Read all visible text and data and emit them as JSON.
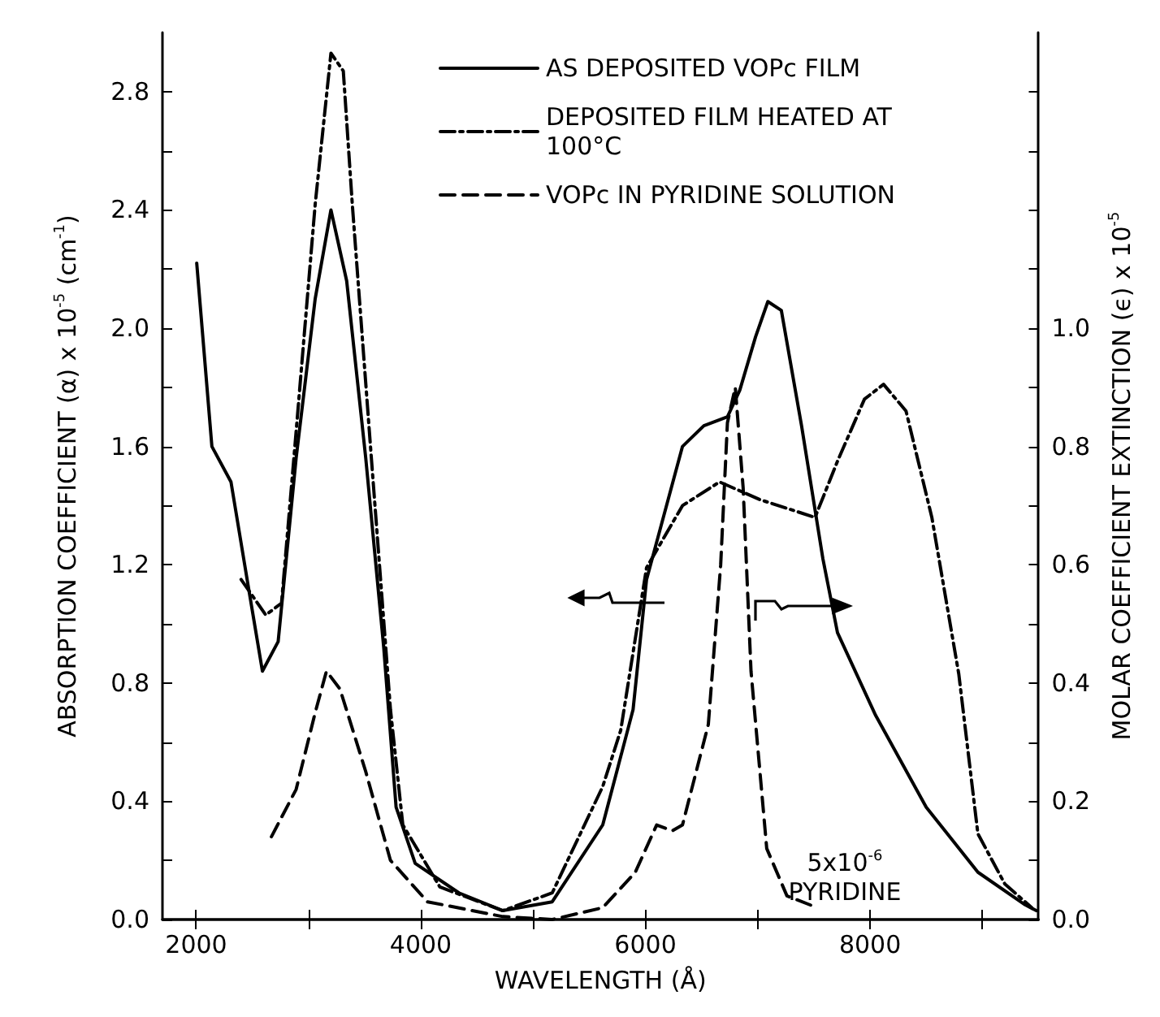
{
  "chart_data": {
    "type": "line",
    "xlabel": "WAVELENGTH (Å)",
    "ylabel": "ABSORPTION COEFFICIENT (α) x 10$^{-5}$ (cm$^{-1}$)",
    "y2label": "MOLAR COEFFICIENT EXTINCTION (ϵ) x 10$^{-5}$",
    "xlim": [
      1700,
      9500
    ],
    "xticks": [
      {
        "value": 2000,
        "label": "2000"
      },
      {
        "value": 3000,
        "label": null
      },
      {
        "value": 4000,
        "label": "4000"
      },
      {
        "value": 5000,
        "label": null
      },
      {
        "value": 6000,
        "label": "6000"
      },
      {
        "value": 7000,
        "label": null
      },
      {
        "value": 8000,
        "label": "8000"
      },
      {
        "value": 9000,
        "label": null
      }
    ],
    "ylim": [
      0,
      3.0
    ],
    "yticks": [
      {
        "value": 0,
        "label": "0.0"
      },
      {
        "value": 0.2,
        "label": null
      },
      {
        "value": 0.4,
        "label": "0.4"
      },
      {
        "value": 0.6,
        "label": null
      },
      {
        "value": 0.8,
        "label": "0.8"
      },
      {
        "value": 1.0,
        "label": null
      },
      {
        "value": 1.2,
        "label": "1.2"
      },
      {
        "value": 1.4,
        "label": null
      },
      {
        "value": 1.6,
        "label": "1.6"
      },
      {
        "value": 1.8,
        "label": null
      },
      {
        "value": 2.0,
        "label": "2.0"
      },
      {
        "value": 2.2,
        "label": null
      },
      {
        "value": 2.4,
        "label": "2.4"
      },
      {
        "value": 2.6,
        "label": null
      },
      {
        "value": 2.8,
        "label": "2.8"
      }
    ],
    "y2lim": [
      0,
      1.5
    ],
    "y2ticks": [
      {
        "value": 0,
        "label": "0.0"
      },
      {
        "value": 0.1,
        "label": null
      },
      {
        "value": 0.2,
        "label": "0.2"
      },
      {
        "value": 0.3,
        "label": null
      },
      {
        "value": 0.4,
        "label": "0.4"
      },
      {
        "value": 0.5,
        "label": null
      },
      {
        "value": 0.6,
        "label": "0.6"
      },
      {
        "value": 0.7,
        "label": null
      },
      {
        "value": 0.8,
        "label": "0.8"
      },
      {
        "value": 0.9,
        "label": null
      },
      {
        "value": 1.0,
        "label": "1.0"
      },
      {
        "value": 1.1,
        "label": null
      },
      {
        "value": 1.2,
        "label": null
      },
      {
        "value": 1.3,
        "label": null
      },
      {
        "value": 1.4,
        "label": null
      }
    ],
    "grid": false,
    "legend": "top right",
    "marker": "none",
    "series": [
      {
        "name": "AS DEPOSITED VOPc FILM",
        "color": "#000000",
        "line_style": "solid",
        "x": [
          2005,
          2140,
          2310,
          2480,
          2590,
          2730,
          2890,
          3060,
          3200,
          3340,
          3510,
          3670,
          3780,
          3950,
          4340,
          4730,
          5170,
          5620,
          5890,
          6010,
          6330,
          6520,
          6730,
          6840,
          6980,
          7090,
          7210,
          7390,
          7580,
          7710,
          8050,
          8500,
          8960,
          9380,
          9480
        ],
        "values": [
          2.22,
          1.6,
          1.48,
          1.09,
          0.84,
          0.94,
          1.56,
          2.1,
          2.4,
          2.16,
          1.56,
          0.92,
          0.38,
          0.19,
          0.09,
          0.03,
          0.06,
          0.32,
          0.71,
          1.15,
          1.6,
          1.67,
          1.7,
          1.79,
          1.97,
          2.09,
          2.06,
          1.67,
          1.22,
          0.97,
          0.69,
          0.38,
          0.16,
          0.05,
          0.03
        ]
      },
      {
        "name": "DEPOSITED FILM HEATED AT 100°C",
        "color": "#000000",
        "line_style": "dashdot",
        "x": [
          2400,
          2620,
          2760,
          2890,
          3060,
          3200,
          3310,
          3390,
          3560,
          3730,
          3840,
          4170,
          4730,
          5170,
          5620,
          5780,
          6010,
          6330,
          6660,
          7020,
          7510,
          7710,
          7950,
          8120,
          8320,
          8550,
          8790,
          8960,
          9200,
          9440
        ],
        "values": [
          1.15,
          1.03,
          1.07,
          1.65,
          2.42,
          2.93,
          2.87,
          2.42,
          1.56,
          0.71,
          0.32,
          0.11,
          0.03,
          0.09,
          0.45,
          0.64,
          1.19,
          1.4,
          1.48,
          1.42,
          1.36,
          1.55,
          1.76,
          1.81,
          1.72,
          1.36,
          0.83,
          0.29,
          0.12,
          0.04
        ]
      },
      {
        "name": "VOPc IN PYRIDINE SOLUTION",
        "color": "#000000",
        "line_style": "dashed",
        "axis": "y2",
        "x": [
          2670,
          2890,
          3060,
          3160,
          3280,
          3510,
          3730,
          4060,
          4730,
          5170,
          5620,
          5910,
          6100,
          6240,
          6330,
          6560,
          6670,
          6730,
          6800,
          6870,
          6940,
          7080,
          7260,
          7530
        ],
        "values": [
          0.14,
          0.22,
          0.35,
          0.42,
          0.39,
          0.25,
          0.1,
          0.03,
          0.005,
          0.0,
          0.02,
          0.08,
          0.16,
          0.15,
          0.16,
          0.33,
          0.6,
          0.84,
          0.9,
          0.73,
          0.42,
          0.12,
          0.04,
          0.02
        ]
      }
    ],
    "annotations": [
      "5x10$^{-6}$\nPYRIDINE"
    ]
  }
}
